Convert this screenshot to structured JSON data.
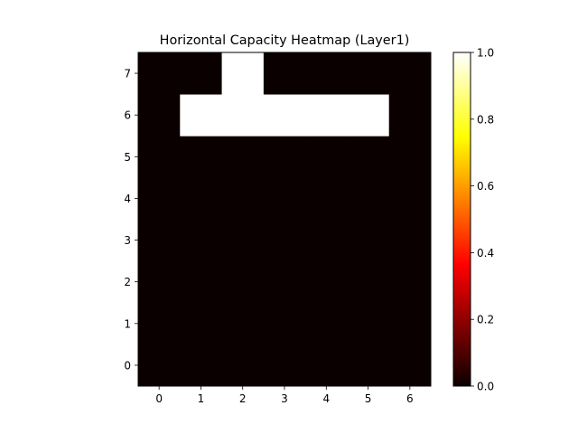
{
  "chart_data": {
    "type": "heatmap",
    "title": "Horizontal Capacity Heatmap (Layer1)",
    "xlabel": "",
    "ylabel": "",
    "x_ticks": [
      "0",
      "1",
      "2",
      "3",
      "4",
      "5",
      "6"
    ],
    "y_ticks": [
      "0",
      "1",
      "2",
      "3",
      "4",
      "5",
      "6",
      "7"
    ],
    "xlim": [
      -0.5,
      6.5
    ],
    "ylim": [
      -0.5,
      7.5
    ],
    "colormap": "hot",
    "vmin": 0.0,
    "vmax": 1.0,
    "colorbar_ticks": [
      "0.0",
      "0.2",
      "0.4",
      "0.6",
      "0.8",
      "1.0"
    ],
    "values": [
      [
        0,
        0,
        0,
        0,
        0,
        0,
        0
      ],
      [
        0,
        0,
        0,
        0,
        0,
        0,
        0
      ],
      [
        0,
        0,
        0,
        0,
        0,
        0,
        0
      ],
      [
        0,
        0,
        0,
        0,
        0,
        0,
        0
      ],
      [
        0,
        0,
        0,
        0,
        0,
        0,
        0
      ],
      [
        0,
        0,
        0,
        0,
        0,
        0,
        0
      ],
      [
        0,
        1,
        1,
        1,
        1,
        1,
        0
      ],
      [
        0,
        0,
        1,
        0,
        0,
        0,
        0
      ]
    ],
    "grid": false,
    "colorbar_position": "right"
  }
}
